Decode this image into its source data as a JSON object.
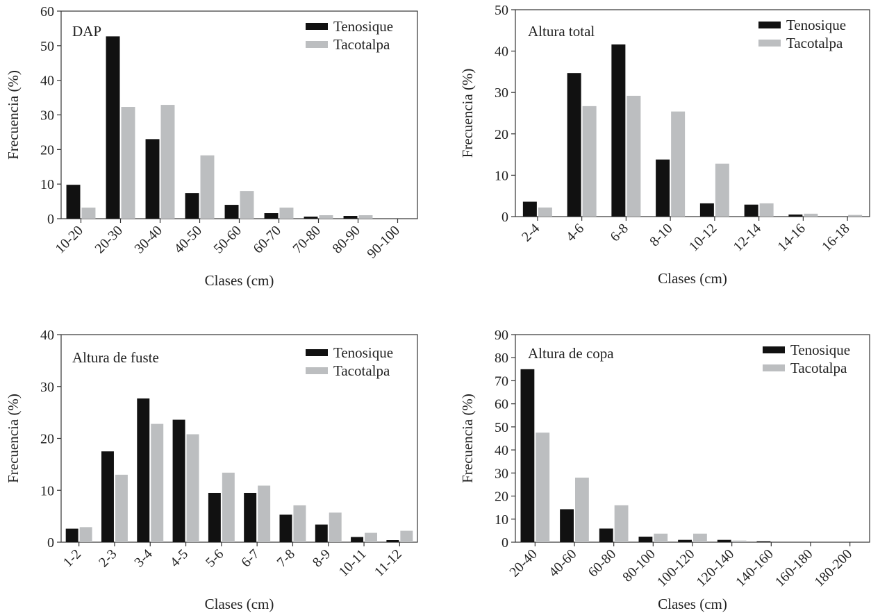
{
  "colors": {
    "tenosique": "#111111",
    "tacotalpa": "#bcbec0",
    "axis": "#333333"
  },
  "chart_data": [
    {
      "type": "bar",
      "title": "DAP",
      "xlabel": "Clases (cm)",
      "ylabel": "Frecuencia (%)",
      "ylim": [
        0,
        60
      ],
      "yticks": [
        0,
        10,
        20,
        30,
        40,
        50,
        60
      ],
      "categories": [
        "10-20",
        "20-30",
        "30-40",
        "40-50",
        "50-60",
        "60-70",
        "70-80",
        "80-90",
        "90-100"
      ],
      "series": [
        {
          "name": "Tenosique",
          "values": [
            9.8,
            52.7,
            23.0,
            7.4,
            4.0,
            1.6,
            0.6,
            0.8,
            0.0
          ]
        },
        {
          "name": "Tacotalpa",
          "values": [
            3.2,
            32.3,
            32.9,
            18.3,
            8.0,
            3.2,
            1.0,
            1.0,
            0.0
          ]
        }
      ],
      "legend": "top-right"
    },
    {
      "type": "bar",
      "title": "Altura total",
      "xlabel": "Clases (cm)",
      "ylabel": "Frecuencia (%)",
      "ylim": [
        0,
        50
      ],
      "yticks": [
        0,
        10,
        20,
        30,
        40,
        50
      ],
      "categories": [
        "2-4",
        "4-6",
        "6-8",
        "8-10",
        "10-12",
        "12-14",
        "14-16",
        "16-18"
      ],
      "series": [
        {
          "name": "Tenosique",
          "values": [
            3.6,
            34.7,
            41.6,
            13.8,
            3.2,
            2.9,
            0.5,
            0.0
          ]
        },
        {
          "name": "Tacotalpa",
          "values": [
            2.2,
            26.7,
            29.2,
            25.4,
            12.8,
            3.2,
            0.7,
            0.4
          ]
        }
      ],
      "legend": "top-right"
    },
    {
      "type": "bar",
      "title": "Altura de fuste",
      "xlabel": "Clases (cm)",
      "ylabel": "Frecuencia (%)",
      "ylim": [
        0,
        40
      ],
      "yticks": [
        0,
        10,
        20,
        30,
        40
      ],
      "categories": [
        "1-2",
        "2-3",
        "3-4",
        "4-5",
        "5-6",
        "6-7",
        "7-8",
        "8-9",
        "10-11",
        "11-12"
      ],
      "series": [
        {
          "name": "Tenosique",
          "values": [
            2.6,
            17.5,
            27.7,
            23.6,
            9.5,
            9.5,
            5.3,
            3.4,
            1.0,
            0.4
          ]
        },
        {
          "name": "Tacotalpa",
          "values": [
            2.9,
            13.0,
            22.8,
            20.8,
            13.4,
            10.9,
            7.1,
            5.7,
            1.8,
            2.2
          ]
        }
      ],
      "legend": "top-right"
    },
    {
      "type": "bar",
      "title": "Altura de copa",
      "xlabel": "Clases (cm)",
      "ylabel": "Frecuencia (%)",
      "ylim": [
        0,
        90
      ],
      "yticks": [
        0,
        10,
        20,
        30,
        40,
        50,
        60,
        70,
        80,
        90
      ],
      "categories": [
        "20-40",
        "40-60",
        "60-80",
        "80-100",
        "100-120",
        "120-140",
        "140-160",
        "160-180",
        "180-200"
      ],
      "series": [
        {
          "name": "Tenosique",
          "values": [
            75.0,
            14.3,
            5.9,
            2.4,
            1.0,
            1.0,
            0.4,
            0.0,
            0.0
          ]
        },
        {
          "name": "Tacotalpa",
          "values": [
            47.5,
            28.0,
            16.0,
            3.7,
            3.7,
            0.7,
            0.0,
            0.0,
            0.0
          ]
        }
      ],
      "legend": "top-right"
    }
  ]
}
